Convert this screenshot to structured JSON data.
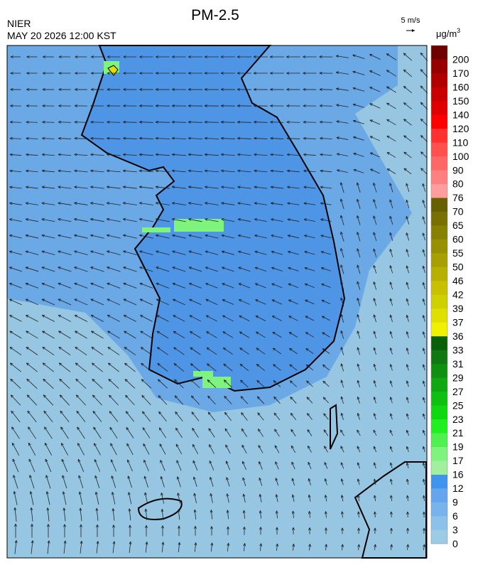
{
  "header": {
    "title": "PM-2.5",
    "agency": "NIER",
    "datetime": "MAY 20 2026 12:00 KST"
  },
  "wind_scale": {
    "label": "5 m/s"
  },
  "legend": {
    "unit": "μg/m",
    "unit_exponent": "3",
    "labels": [
      "0",
      "3",
      "6",
      "9",
      "12",
      "16",
      "17",
      "19",
      "21",
      "23",
      "25",
      "27",
      "29",
      "31",
      "33",
      "36",
      "37",
      "39",
      "42",
      "46",
      "50",
      "55",
      "60",
      "65",
      "70",
      "76",
      "80",
      "90",
      "100",
      "110",
      "120",
      "140",
      "150",
      "160",
      "170",
      "200"
    ],
    "colors": [
      "#9ccbe6",
      "#8cc2ea",
      "#78b3ec",
      "#64a6ee",
      "#3f95ec",
      "#a0f0a0",
      "#7ef37e",
      "#50f050",
      "#20f020",
      "#10d810",
      "#10c010",
      "#10a810",
      "#109010",
      "#107810",
      "#086008",
      "#f0f000",
      "#e0e000",
      "#d0d000",
      "#c8c000",
      "#b8b000",
      "#a8a000",
      "#989000",
      "#888000",
      "#787000",
      "#686000",
      "#ff9c9c",
      "#ff8080",
      "#ff6666",
      "#ff5050",
      "#ff3030",
      "#ff0000",
      "#e00000",
      "#c80000",
      "#b00000",
      "#980000",
      "#700000"
    ]
  }
}
